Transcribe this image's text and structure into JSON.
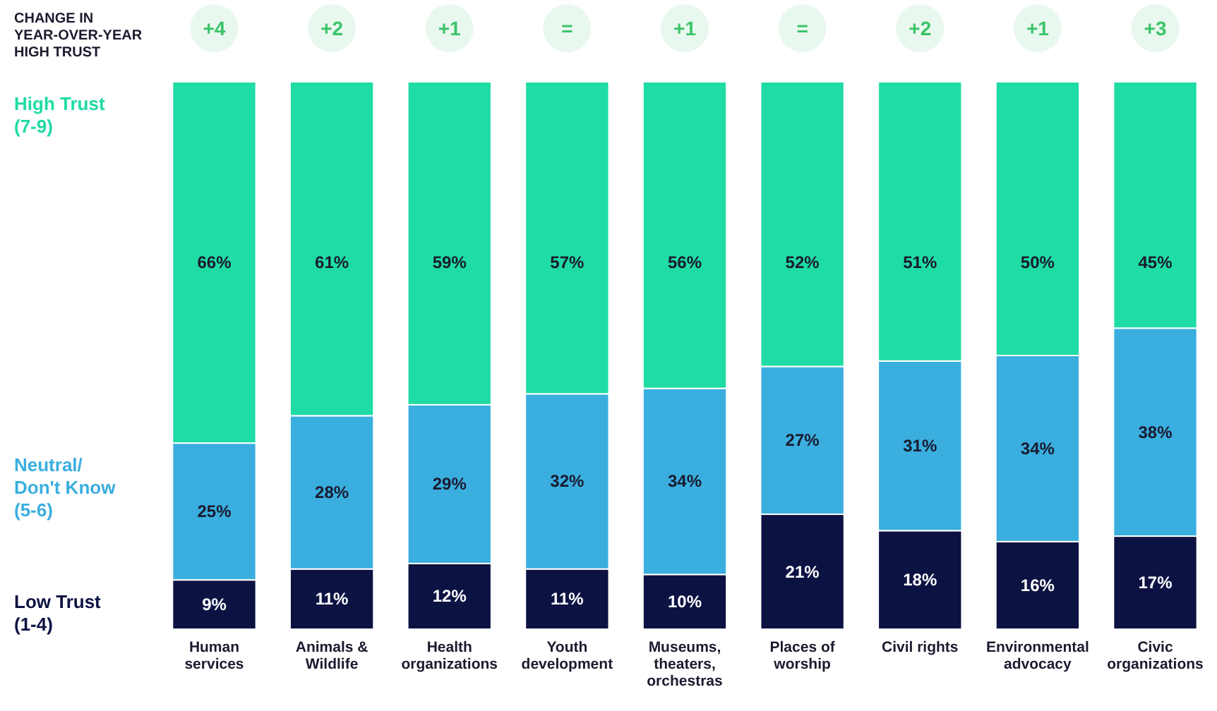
{
  "chart_data": {
    "type": "bar",
    "stacked": true,
    "categories": [
      "Human services",
      "Animals & Wildlife",
      "Health organizations",
      "Youth development",
      "Museums, theaters, orchestras",
      "Places of worship",
      "Civil rights",
      "Environmental advocacy",
      "Civic organizations"
    ],
    "series": [
      {
        "name": "Low Trust (1-4)",
        "color": "#0c1242",
        "values": [
          9,
          11,
          12,
          11,
          10,
          21,
          18,
          16,
          17
        ],
        "value_labels": [
          "9%",
          "11%",
          "12%",
          "11%",
          "10%",
          "21%",
          "18%",
          "16%",
          "17%"
        ]
      },
      {
        "name": "Neutral/ Don't Know (5-6)",
        "color": "#3aaedf",
        "values": [
          25,
          28,
          29,
          32,
          34,
          27,
          31,
          34,
          38
        ],
        "value_labels": [
          "25%",
          "28%",
          "29%",
          "32%",
          "34%",
          "27%",
          "31%",
          "34%",
          "38%"
        ]
      },
      {
        "name": "High Trust (7-9)",
        "color": "#1fdba4",
        "values": [
          66,
          61,
          59,
          57,
          56,
          52,
          51,
          50,
          45
        ],
        "value_labels": [
          "66%",
          "61%",
          "59%",
          "57%",
          "56%",
          "52%",
          "51%",
          "50%",
          "45%"
        ]
      }
    ],
    "annotations": [
      "CHANGE IN YEAR-OVER-YEAR HIGH TRUST",
      "+4",
      "+2",
      "+1",
      "=",
      "+1",
      "=",
      "+2",
      "+1",
      "+3"
    ]
  }
}
